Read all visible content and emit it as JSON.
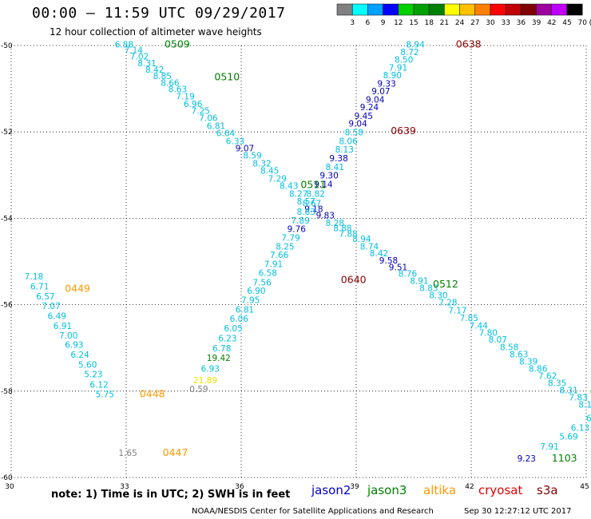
{
  "header": {
    "title": "00:00 – 11:59 UTC 09/29/2017",
    "subtitle": "12 hour collection of altimeter wave heights",
    "scale_labels": [
      "3",
      "6",
      "9",
      "12",
      "15",
      "18",
      "21",
      "24",
      "27",
      "30",
      "33",
      "36",
      "39",
      "42",
      "45",
      "70",
      "(ft)"
    ],
    "scale_colors": [
      "#808080",
      "#00ffff",
      "#00a0ff",
      "#0000ff",
      "#00d000",
      "#00a000",
      "#008000",
      "#ffff00",
      "#ffc000",
      "#ff8000",
      "#ff0000",
      "#c00000",
      "#800000",
      "#a000a0",
      "#c000ff",
      "#000000"
    ]
  },
  "footer": {
    "note": "note:  1) Time is in UTC;  2) SWH is in feet",
    "credit": "NOAA/NESDIS Center for Satellite Applications and Research",
    "timestamp": "Sep 30 12:27:12 UTC 2017"
  },
  "satellites": [
    {
      "name": "jason2",
      "color": "#0000c8"
    },
    {
      "name": "jason3",
      "color": "#008000"
    },
    {
      "name": "altika",
      "color": "#ff9900"
    },
    {
      "name": "cryosat",
      "color": "#e00000"
    },
    {
      "name": "s3a",
      "color": "#800000"
    }
  ],
  "chart_data": {
    "type": "scatter",
    "title": "00:00 – 11:59 UTC 09/29/2017",
    "xlim": [
      30,
      45
    ],
    "ylim": [
      -60,
      -50
    ],
    "xticks": [
      30,
      33,
      36,
      39,
      42,
      45
    ],
    "yticks": [
      -50,
      -52,
      -54,
      -56,
      -58,
      -60
    ],
    "grid": true,
    "grid_style": "dotted",
    "colors": {
      "grey": "#808080",
      "cyan": "#00c0e0",
      "blue": "#0000c0",
      "green": "#008000",
      "yellow": "#f0e000",
      "orange": "#ff9900",
      "darkred": "#8b0000"
    },
    "points": [
      {
        "x": 32.7,
        "y": -50.05,
        "label": "6.88",
        "c": "cyan"
      },
      {
        "x": 32.95,
        "y": -50.18,
        "label": "7.14",
        "c": "cyan"
      },
      {
        "x": 33.1,
        "y": -50.32,
        "label": "7.02",
        "c": "cyan"
      },
      {
        "x": 33.3,
        "y": -50.48,
        "label": "8.31",
        "c": "cyan"
      },
      {
        "x": 33.5,
        "y": -50.63,
        "label": "8.42",
        "c": "cyan"
      },
      {
        "x": 33.7,
        "y": -50.78,
        "label": "8.85",
        "c": "cyan"
      },
      {
        "x": 33.9,
        "y": -50.93,
        "label": "8.66",
        "c": "cyan"
      },
      {
        "x": 34.1,
        "y": -51.08,
        "label": "8.63",
        "c": "cyan"
      },
      {
        "x": 34.3,
        "y": -51.25,
        "label": "7.19",
        "c": "cyan"
      },
      {
        "x": 34.5,
        "y": -51.42,
        "label": "6.96",
        "c": "cyan"
      },
      {
        "x": 34.7,
        "y": -51.58,
        "label": "7.25",
        "c": "cyan"
      },
      {
        "x": 34.9,
        "y": -51.75,
        "label": "7.06",
        "c": "cyan"
      },
      {
        "x": 35.1,
        "y": -51.93,
        "label": "6.81",
        "c": "cyan"
      },
      {
        "x": 35.35,
        "y": -52.1,
        "label": "6.64",
        "c": "cyan"
      },
      {
        "x": 35.6,
        "y": -52.28,
        "label": "6.33",
        "c": "cyan"
      },
      {
        "x": 35.85,
        "y": -52.45,
        "label": "9.07",
        "c": "blue"
      },
      {
        "x": 36.05,
        "y": -52.62,
        "label": "8.59",
        "c": "cyan"
      },
      {
        "x": 36.3,
        "y": -52.8,
        "label": "8.32",
        "c": "cyan"
      },
      {
        "x": 36.5,
        "y": -52.97,
        "label": "8.45",
        "c": "cyan"
      },
      {
        "x": 36.7,
        "y": -53.15,
        "label": "7.29",
        "c": "cyan"
      },
      {
        "x": 37.0,
        "y": -53.32,
        "label": "8.43",
        "c": "cyan"
      },
      {
        "x": 37.25,
        "y": -53.5,
        "label": "8.27",
        "c": "cyan"
      },
      {
        "x": 37.45,
        "y": -53.68,
        "label": "8.57",
        "c": "cyan"
      },
      {
        "x": 37.65,
        "y": -53.85,
        "label": "9.18",
        "c": "blue"
      },
      {
        "x": 37.95,
        "y": -54.0,
        "label": "9.83",
        "c": "blue"
      },
      {
        "x": 38.2,
        "y": -54.18,
        "label": "8.28",
        "c": "cyan"
      },
      {
        "x": 38.4,
        "y": -54.3,
        "label": "8.88",
        "c": "cyan"
      },
      {
        "x": 38.55,
        "y": -54.43,
        "label": "7.88",
        "c": "cyan"
      },
      {
        "x": 38.9,
        "y": -54.55,
        "label": "8.94",
        "c": "cyan"
      },
      {
        "x": 39.1,
        "y": -54.72,
        "label": "8.74",
        "c": "cyan"
      },
      {
        "x": 39.35,
        "y": -54.88,
        "label": "8.42",
        "c": "cyan"
      },
      {
        "x": 39.6,
        "y": -55.05,
        "label": "9.58",
        "c": "blue"
      },
      {
        "x": 39.85,
        "y": -55.2,
        "label": "9.51",
        "c": "blue"
      },
      {
        "x": 40.1,
        "y": -55.35,
        "label": "8.76",
        "c": "cyan"
      },
      {
        "x": 40.4,
        "y": -55.52,
        "label": "8.91",
        "c": "cyan"
      },
      {
        "x": 40.65,
        "y": -55.68,
        "label": "8.83",
        "c": "cyan"
      },
      {
        "x": 40.9,
        "y": -55.85,
        "label": "8.30",
        "c": "cyan"
      },
      {
        "x": 41.15,
        "y": -56.02,
        "label": "7.28",
        "c": "cyan"
      },
      {
        "x": 41.4,
        "y": -56.2,
        "label": "7.17",
        "c": "cyan"
      },
      {
        "x": 41.7,
        "y": -56.38,
        "label": "7.85",
        "c": "cyan"
      },
      {
        "x": 41.95,
        "y": -56.55,
        "label": "7.44",
        "c": "cyan"
      },
      {
        "x": 42.2,
        "y": -56.72,
        "label": "7.80",
        "c": "cyan"
      },
      {
        "x": 42.45,
        "y": -56.88,
        "label": "8.07",
        "c": "cyan"
      },
      {
        "x": 42.75,
        "y": -57.05,
        "label": "8.58",
        "c": "cyan"
      },
      {
        "x": 43.0,
        "y": -57.22,
        "label": "8.63",
        "c": "cyan"
      },
      {
        "x": 43.25,
        "y": -57.38,
        "label": "8.39",
        "c": "cyan"
      },
      {
        "x": 43.5,
        "y": -57.55,
        "label": "8.86",
        "c": "cyan"
      },
      {
        "x": 43.75,
        "y": -57.72,
        "label": "7.62",
        "c": "cyan"
      },
      {
        "x": 44.0,
        "y": -57.88,
        "label": "8.35",
        "c": "cyan"
      },
      {
        "x": 44.3,
        "y": -58.05,
        "label": "8.31",
        "c": "cyan"
      },
      {
        "x": 44.55,
        "y": -58.22,
        "label": "7.83",
        "c": "cyan"
      },
      {
        "x": 44.8,
        "y": -58.38,
        "label": "8.1",
        "c": "cyan"
      },
      {
        "x": 40.3,
        "y": -50.05,
        "label": "8.94",
        "c": "cyan"
      },
      {
        "x": 40.15,
        "y": -50.22,
        "label": "8.72",
        "c": "cyan"
      },
      {
        "x": 40.0,
        "y": -50.4,
        "label": "8.50",
        "c": "cyan"
      },
      {
        "x": 39.85,
        "y": -50.58,
        "label": "7.91",
        "c": "cyan"
      },
      {
        "x": 39.7,
        "y": -50.76,
        "label": "8.90",
        "c": "cyan"
      },
      {
        "x": 39.55,
        "y": -50.95,
        "label": "9.33",
        "c": "blue"
      },
      {
        "x": 39.4,
        "y": -51.13,
        "label": "9.07",
        "c": "blue"
      },
      {
        "x": 39.25,
        "y": -51.32,
        "label": "9.04",
        "c": "blue"
      },
      {
        "x": 39.1,
        "y": -51.5,
        "label": "9.24",
        "c": "blue"
      },
      {
        "x": 38.95,
        "y": -51.7,
        "label": "9.45",
        "c": "blue"
      },
      {
        "x": 38.8,
        "y": -51.88,
        "label": "9.04",
        "c": "blue"
      },
      {
        "x": 38.7,
        "y": -52.08,
        "label": "8.58",
        "c": "cyan"
      },
      {
        "x": 38.55,
        "y": -52.28,
        "label": "8.06",
        "c": "cyan"
      },
      {
        "x": 38.45,
        "y": -52.48,
        "label": "8.13",
        "c": "cyan"
      },
      {
        "x": 38.3,
        "y": -52.68,
        "label": "9.38",
        "c": "blue"
      },
      {
        "x": 38.2,
        "y": -52.88,
        "label": "8.41",
        "c": "cyan"
      },
      {
        "x": 38.05,
        "y": -53.08,
        "label": "9.30",
        "c": "blue"
      },
      {
        "x": 37.9,
        "y": -53.28,
        "label": "9.14",
        "c": "blue"
      },
      {
        "x": 37.7,
        "y": -53.5,
        "label": "8.82",
        "c": "cyan"
      },
      {
        "x": 37.6,
        "y": -53.72,
        "label": "8.67",
        "c": "cyan"
      },
      {
        "x": 37.45,
        "y": -53.92,
        "label": "8.83",
        "c": "cyan"
      },
      {
        "x": 37.3,
        "y": -54.12,
        "label": "7.89",
        "c": "cyan"
      },
      {
        "x": 37.2,
        "y": -54.32,
        "label": "9.76",
        "c": "blue"
      },
      {
        "x": 37.05,
        "y": -54.52,
        "label": "7.79",
        "c": "cyan"
      },
      {
        "x": 36.9,
        "y": -54.72,
        "label": "8.25",
        "c": "cyan"
      },
      {
        "x": 36.75,
        "y": -54.92,
        "label": "7.66",
        "c": "cyan"
      },
      {
        "x": 36.6,
        "y": -55.13,
        "label": "7.91",
        "c": "cyan"
      },
      {
        "x": 36.45,
        "y": -55.33,
        "label": "6.58",
        "c": "cyan"
      },
      {
        "x": 36.3,
        "y": -55.55,
        "label": "7.56",
        "c": "cyan"
      },
      {
        "x": 36.15,
        "y": -55.75,
        "label": "6.90",
        "c": "cyan"
      },
      {
        "x": 36.0,
        "y": -55.96,
        "label": "7.95",
        "c": "cyan"
      },
      {
        "x": 35.85,
        "y": -56.18,
        "label": "6.81",
        "c": "cyan"
      },
      {
        "x": 35.7,
        "y": -56.4,
        "label": "6.06",
        "c": "cyan"
      },
      {
        "x": 35.55,
        "y": -56.62,
        "label": "6.05",
        "c": "cyan"
      },
      {
        "x": 35.4,
        "y": -56.85,
        "label": "6.23",
        "c": "cyan"
      },
      {
        "x": 35.25,
        "y": -57.08,
        "label": "6.78",
        "c": "cyan"
      },
      {
        "x": 35.1,
        "y": -57.3,
        "label": "19.42",
        "c": "green"
      },
      {
        "x": 34.95,
        "y": -57.55,
        "label": "6.93",
        "c": "cyan"
      },
      {
        "x": 34.75,
        "y": -57.82,
        "label": "21.89",
        "c": "yellow"
      },
      {
        "x": 34.65,
        "y": -58.02,
        "label": "0.59",
        "c": "grey"
      },
      {
        "x": 30.35,
        "y": -55.42,
        "label": "7.18",
        "c": "cyan"
      },
      {
        "x": 30.5,
        "y": -55.65,
        "label": "6.71",
        "c": "cyan"
      },
      {
        "x": 30.65,
        "y": -55.88,
        "label": "6.57",
        "c": "cyan"
      },
      {
        "x": 30.8,
        "y": -56.1,
        "label": "7.07",
        "c": "cyan"
      },
      {
        "x": 30.95,
        "y": -56.33,
        "label": "6.49",
        "c": "cyan"
      },
      {
        "x": 31.1,
        "y": -56.56,
        "label": "6.91",
        "c": "cyan"
      },
      {
        "x": 31.25,
        "y": -56.78,
        "label": "7.00",
        "c": "cyan"
      },
      {
        "x": 31.4,
        "y": -57.0,
        "label": "6.93",
        "c": "cyan"
      },
      {
        "x": 31.55,
        "y": -57.23,
        "label": "6.24",
        "c": "cyan"
      },
      {
        "x": 31.75,
        "y": -57.46,
        "label": "5.60",
        "c": "cyan"
      },
      {
        "x": 31.9,
        "y": -57.68,
        "label": "5.23",
        "c": "cyan"
      },
      {
        "x": 32.05,
        "y": -57.92,
        "label": "6.12",
        "c": "cyan"
      },
      {
        "x": 32.2,
        "y": -58.14,
        "label": "5.75",
        "c": "cyan"
      },
      {
        "x": 32.8,
        "y": -59.5,
        "label": "1.65",
        "c": "grey"
      },
      {
        "x": 45.0,
        "y": -58.7,
        "label": "6.3",
        "c": "cyan"
      },
      {
        "x": 44.6,
        "y": -58.92,
        "label": "6.13",
        "c": "cyan"
      },
      {
        "x": 44.3,
        "y": -59.12,
        "label": "5.69",
        "c": "cyan"
      },
      {
        "x": 43.8,
        "y": -59.35,
        "label": "7.91",
        "c": "cyan"
      },
      {
        "x": 43.2,
        "y": -59.63,
        "label": "9.23",
        "c": "blue"
      }
    ],
    "passes": [
      {
        "x": 34.0,
        "y": -50.05,
        "label": "0509",
        "c": "green"
      },
      {
        "x": 35.3,
        "y": -50.8,
        "label": "0510",
        "c": "green"
      },
      {
        "x": 37.55,
        "y": -53.3,
        "label": "0511",
        "c": "green"
      },
      {
        "x": 41.0,
        "y": -55.6,
        "label": "0512",
        "c": "green"
      },
      {
        "x": 45.1,
        "y": -58.1,
        "label": "05",
        "c": "green"
      },
      {
        "x": 44.1,
        "y": -59.63,
        "label": "1103",
        "c": "green"
      },
      {
        "x": 41.6,
        "y": -50.05,
        "label": "0638",
        "c": "darkred"
      },
      {
        "x": 39.9,
        "y": -52.05,
        "label": "0639",
        "c": "darkred"
      },
      {
        "x": 38.6,
        "y": -55.5,
        "label": "0640",
        "c": "darkred"
      },
      {
        "x": 31.4,
        "y": -55.7,
        "label": "0449",
        "c": "orange"
      },
      {
        "x": 33.35,
        "y": -58.14,
        "label": "0448",
        "c": "orange"
      },
      {
        "x": 33.95,
        "y": -59.5,
        "label": "0447",
        "c": "orange"
      }
    ]
  }
}
